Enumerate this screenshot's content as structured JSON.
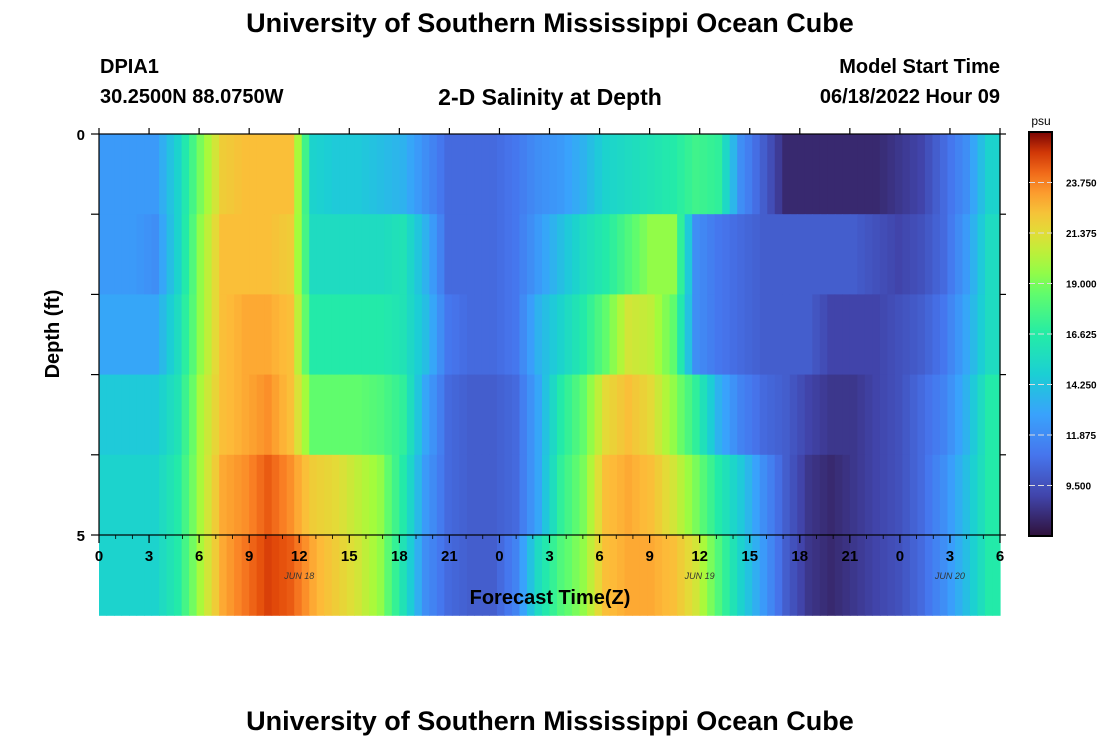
{
  "header": {
    "title": "University of Southern Mississippi Ocean Cube",
    "station_id": "DPIA1",
    "station_coords": "30.2500N  88.0750W",
    "plot_title": "2-D Salinity at Depth",
    "run_label": "Model Start Time",
    "run_time": "06/18/2022 Hour 09"
  },
  "footer": {
    "title": "University of Southern Mississippi Ocean Cube"
  },
  "chart_data": {
    "type": "heatmap",
    "xlabel": "Forecast Time(Z)",
    "ylabel": "Depth (ft)",
    "ylim": [
      0,
      5
    ],
    "y_tick_labels": [
      "0",
      "5"
    ],
    "x_tick_labels": [
      "0",
      "3",
      "6",
      "9",
      "12",
      "15",
      "18",
      "21",
      "0",
      "3",
      "6",
      "9",
      "12",
      "15",
      "18",
      "21",
      "0",
      "3",
      "6"
    ],
    "date_labels": [
      {
        "text": "JUN 18",
        "tick_index": 4
      },
      {
        "text": "JUN 19",
        "tick_index": 12
      },
      {
        "text": "JUN 20",
        "tick_index": 17
      }
    ],
    "x_hours": [
      0,
      3,
      6,
      9,
      12,
      15,
      18,
      21,
      24,
      27,
      30,
      33,
      36,
      39,
      42,
      45,
      48,
      51,
      54
    ],
    "depth_levels": [
      0,
      1,
      2,
      3,
      4,
      5
    ],
    "colorbar": {
      "unit": "psu",
      "range": [
        7.125,
        26.125
      ],
      "ticks": [
        "23.750",
        "21.375",
        "19.000",
        "16.625",
        "14.250",
        "11.875",
        "9.500"
      ],
      "tick_values": [
        23.75,
        21.375,
        19.0,
        16.625,
        14.25,
        11.875,
        9.5
      ]
    },
    "salinity_psu": [
      [
        12.5,
        12.5,
        12.5,
        15.0,
        19.0,
        22.0,
        22.5,
        22.5,
        22.5,
        15.0,
        14.5,
        14.5,
        14.0,
        13.5,
        12.0,
        10.5,
        10.5,
        10.5,
        11.0,
        12.0,
        12.5,
        13.5,
        15.0,
        15.5,
        16.0,
        16.5,
        17.5,
        17.0,
        12.0,
        10.0,
        8.0,
        8.0,
        8.0,
        8.0,
        8.0,
        8.5,
        9.0,
        10.5,
        12.0,
        15.0
      ],
      [
        12.5,
        12.5,
        12.0,
        15.0,
        19.5,
        22.5,
        22.5,
        22.5,
        22.0,
        15.5,
        15.5,
        15.5,
        15.5,
        16.0,
        13.5,
        10.5,
        10.5,
        10.5,
        11.0,
        12.5,
        14.0,
        15.5,
        16.5,
        18.0,
        19.5,
        19.5,
        12.0,
        11.0,
        10.5,
        10.0,
        10.0,
        10.0,
        10.0,
        10.0,
        9.5,
        9.0,
        9.5,
        10.5,
        12.5,
        15.5
      ],
      [
        13.0,
        13.0,
        13.0,
        15.5,
        19.5,
        22.5,
        23.0,
        23.0,
        22.5,
        16.5,
        16.5,
        16.5,
        16.5,
        16.0,
        14.0,
        11.0,
        10.5,
        10.5,
        11.0,
        13.5,
        15.0,
        16.5,
        18.5,
        21.0,
        20.5,
        18.5,
        12.0,
        11.0,
        10.5,
        10.0,
        10.0,
        10.0,
        9.0,
        9.0,
        9.0,
        9.5,
        10.0,
        11.0,
        13.0,
        15.5
      ],
      [
        14.5,
        14.5,
        14.5,
        16.0,
        20.0,
        22.5,
        23.0,
        23.5,
        22.5,
        18.5,
        18.5,
        18.5,
        18.0,
        17.0,
        13.0,
        10.5,
        10.0,
        10.0,
        10.5,
        13.0,
        16.5,
        18.5,
        21.5,
        22.5,
        21.5,
        19.5,
        17.0,
        13.5,
        11.5,
        10.5,
        10.0,
        9.0,
        8.5,
        8.5,
        9.0,
        9.5,
        10.5,
        11.5,
        13.5,
        16.5
      ],
      [
        15.0,
        15.0,
        15.0,
        16.5,
        20.0,
        23.0,
        23.5,
        24.5,
        23.5,
        22.0,
        21.5,
        20.5,
        19.5,
        16.5,
        12.5,
        10.5,
        10.0,
        10.0,
        10.5,
        13.0,
        17.0,
        19.0,
        22.5,
        23.0,
        22.5,
        21.0,
        19.0,
        16.5,
        14.5,
        12.0,
        10.0,
        8.5,
        8.0,
        8.5,
        9.0,
        9.5,
        10.5,
        12.0,
        14.0,
        16.5
      ],
      [
        15.0,
        15.0,
        15.0,
        16.5,
        20.0,
        23.0,
        24.0,
        25.0,
        24.5,
        23.0,
        22.0,
        21.0,
        19.5,
        16.0,
        12.0,
        10.5,
        10.0,
        10.0,
        11.5,
        15.5,
        18.0,
        19.5,
        22.5,
        23.0,
        23.0,
        22.5,
        21.0,
        18.0,
        15.0,
        12.5,
        10.0,
        8.5,
        8.0,
        8.5,
        9.0,
        9.5,
        10.5,
        12.0,
        14.0,
        16.5
      ]
    ]
  }
}
